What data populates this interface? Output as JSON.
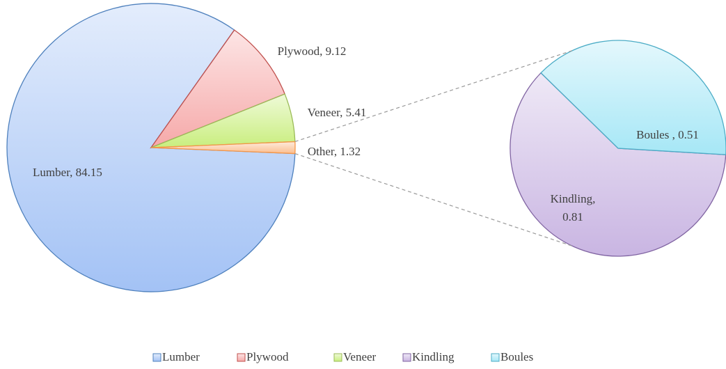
{
  "chart_data": {
    "type": "pie_of_pie",
    "categories": [
      "Lumber",
      "Plywood",
      "Veneer",
      "Other"
    ],
    "values": [
      84.15,
      9.12,
      5.41,
      1.32
    ],
    "value_labels": [
      "Lumber,  84.15",
      "Plywood,  9.12",
      "Veneer,  5.41",
      "Other,  1.32"
    ],
    "colors": [
      "#a3c2f5",
      "#f6a9a9",
      "#c9ee7e",
      "#fbbd8e"
    ],
    "borders": [
      "#4f81bd",
      "#c0504d",
      "#9bbb59",
      "#f79646"
    ],
    "secondary": {
      "categories": [
        "Kindling",
        "Boules"
      ],
      "values": [
        0.81,
        0.51
      ],
      "value_labels": [
        "Kindling,\n0.81",
        "Boules ,  0.51"
      ],
      "colors": [
        "#c9b5e2",
        "#a6e7f6"
      ],
      "borders": [
        "#8064a2",
        "#4bacc6"
      ]
    },
    "legend": "bottom"
  }
}
